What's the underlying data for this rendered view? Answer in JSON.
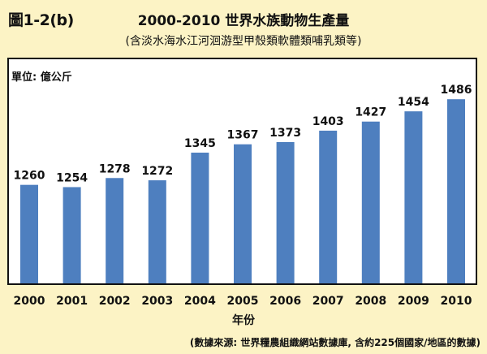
{
  "figure_label": "圖1-2(b)",
  "source_note": "(數據來源: 世界糧農組織網站數據庫, 含約225個國家/地區的數據)",
  "chart_data": {
    "type": "bar",
    "title": "2000-2010 世界水族動物生產量",
    "subtitle": "(含淡水海水江河洄游型甲殼類軟體類哺乳類等)",
    "unit_label": "單位: 億公斤",
    "xlabel": "年份",
    "ylabel": "",
    "categories": [
      "2000",
      "2001",
      "2002",
      "2003",
      "2004",
      "2005",
      "2006",
      "2007",
      "2008",
      "2009",
      "2010"
    ],
    "values": [
      1260,
      1254,
      1278,
      1272,
      1345,
      1367,
      1373,
      1403,
      1427,
      1454,
      1486
    ],
    "ylim": [
      1000,
      1540
    ],
    "grid": false,
    "legend": "none",
    "bar_color": "#4e7fbf"
  }
}
